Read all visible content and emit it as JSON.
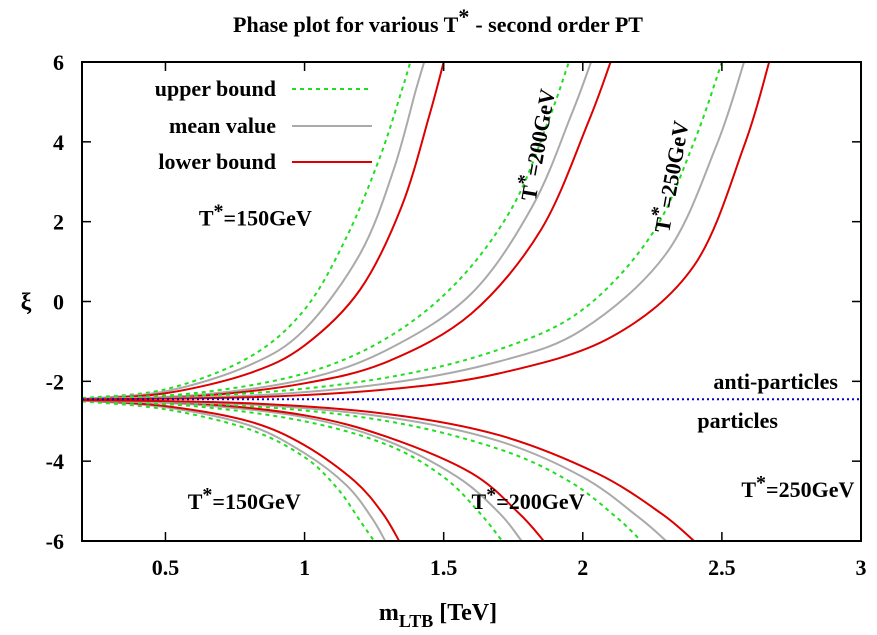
{
  "chart_data": {
    "type": "line",
    "title": "Phase plot for various T* - second order PT",
    "title_parts": [
      "Phase plot for various T",
      "*",
      "- second order PT"
    ],
    "xlabel": "m_LTB [TeV]",
    "xlabel_main": "m",
    "xlabel_sub": "LTB",
    "xlabel_unit": "[TeV]",
    "ylabel": "ξ",
    "xlim": [
      0.2,
      3.0
    ],
    "ylim": [
      -6,
      6
    ],
    "x_ticks": [
      0.5,
      1,
      1.5,
      2,
      2.5,
      3
    ],
    "y_ticks": [
      -6,
      -4,
      -2,
      0,
      2,
      4,
      6
    ],
    "grid": false,
    "legend_position": "top-left",
    "colors": {
      "upper": "#22dd22",
      "mean": "#aaaaaa",
      "lower": "#dd0000",
      "divider": "#0000cc"
    },
    "legend": [
      {
        "key": "upper",
        "label": "upper bound"
      },
      {
        "key": "mean",
        "label": "mean value"
      },
      {
        "key": "lower",
        "label": "lower bound"
      }
    ],
    "xi0": -2.45,
    "series": [
      {
        "temp": "150GeV",
        "bound": "upper",
        "branch": "up",
        "x": [
          0.2,
          0.5,
          0.8,
          1.0,
          1.15,
          1.27,
          1.35,
          1.38
        ],
        "y": [
          -2.42,
          -2.2,
          -1.4,
          -0.2,
          1.6,
          3.6,
          5.3,
          6.0
        ]
      },
      {
        "temp": "150GeV",
        "bound": "mean",
        "branch": "up",
        "x": [
          0.2,
          0.5,
          0.8,
          1.0,
          1.2,
          1.32,
          1.4,
          1.43
        ],
        "y": [
          -2.44,
          -2.25,
          -1.6,
          -0.7,
          1.2,
          3.3,
          5.3,
          6.0
        ]
      },
      {
        "temp": "150GeV",
        "bound": "lower",
        "branch": "up",
        "x": [
          0.2,
          0.5,
          0.8,
          1.0,
          1.2,
          1.35,
          1.45,
          1.5
        ],
        "y": [
          -2.45,
          -2.3,
          -1.8,
          -1.1,
          0.3,
          2.4,
          4.7,
          6.0
        ]
      },
      {
        "temp": "200GeV",
        "bound": "upper",
        "branch": "up",
        "x": [
          0.2,
          0.6,
          1.0,
          1.3,
          1.55,
          1.75,
          1.88,
          1.95
        ],
        "y": [
          -2.42,
          -2.3,
          -1.8,
          -0.9,
          0.5,
          2.4,
          4.6,
          6.0
        ]
      },
      {
        "temp": "200GeV",
        "bound": "mean",
        "branch": "up",
        "x": [
          0.2,
          0.6,
          1.0,
          1.3,
          1.6,
          1.82,
          1.96,
          2.03
        ],
        "y": [
          -2.44,
          -2.35,
          -1.95,
          -1.2,
          0.2,
          2.4,
          4.7,
          6.0
        ]
      },
      {
        "temp": "200GeV",
        "bound": "lower",
        "branch": "up",
        "x": [
          0.2,
          0.6,
          1.0,
          1.3,
          1.6,
          1.85,
          2.02,
          2.1
        ],
        "y": [
          -2.45,
          -2.38,
          -2.05,
          -1.5,
          -0.3,
          1.8,
          4.5,
          6.0
        ]
      },
      {
        "temp": "250GeV",
        "bound": "upper",
        "branch": "up",
        "x": [
          0.2,
          0.8,
          1.3,
          1.7,
          2.0,
          2.25,
          2.4,
          2.5
        ],
        "y": [
          -2.42,
          -2.3,
          -1.9,
          -1.2,
          -0.2,
          1.7,
          4.0,
          6.0
        ]
      },
      {
        "temp": "250GeV",
        "bound": "mean",
        "branch": "up",
        "x": [
          0.2,
          0.8,
          1.3,
          1.7,
          2.0,
          2.3,
          2.48,
          2.58
        ],
        "y": [
          -2.44,
          -2.36,
          -2.05,
          -1.5,
          -0.7,
          1.2,
          3.9,
          6.0
        ]
      },
      {
        "temp": "250GeV",
        "bound": "lower",
        "branch": "up",
        "x": [
          0.2,
          0.8,
          1.3,
          1.7,
          2.1,
          2.4,
          2.58,
          2.67
        ],
        "y": [
          -2.45,
          -2.4,
          -2.2,
          -1.8,
          -0.9,
          0.9,
          3.9,
          6.0
        ]
      },
      {
        "temp": "150GeV",
        "bound": "upper",
        "branch": "down",
        "x": [
          0.2,
          0.5,
          0.8,
          1.0,
          1.12,
          1.2,
          1.25
        ],
        "y": [
          -2.5,
          -2.7,
          -3.2,
          -3.9,
          -4.7,
          -5.5,
          -6.0
        ]
      },
      {
        "temp": "150GeV",
        "bound": "mean",
        "branch": "down",
        "x": [
          0.2,
          0.5,
          0.8,
          1.0,
          1.15,
          1.24,
          1.29
        ],
        "y": [
          -2.48,
          -2.65,
          -3.1,
          -3.8,
          -4.6,
          -5.4,
          -6.0
        ]
      },
      {
        "temp": "150GeV",
        "bound": "lower",
        "branch": "down",
        "x": [
          0.2,
          0.5,
          0.8,
          1.0,
          1.18,
          1.28,
          1.34
        ],
        "y": [
          -2.47,
          -2.62,
          -3.0,
          -3.6,
          -4.5,
          -5.3,
          -6.0
        ]
      },
      {
        "temp": "200GeV",
        "bound": "upper",
        "branch": "down",
        "x": [
          0.2,
          0.6,
          1.0,
          1.3,
          1.5,
          1.63,
          1.71
        ],
        "y": [
          -2.5,
          -2.62,
          -3.0,
          -3.6,
          -4.4,
          -5.3,
          -6.0
        ]
      },
      {
        "temp": "200GeV",
        "bound": "mean",
        "branch": "down",
        "x": [
          0.2,
          0.6,
          1.0,
          1.3,
          1.55,
          1.7,
          1.78
        ],
        "y": [
          -2.48,
          -2.58,
          -2.9,
          -3.5,
          -4.4,
          -5.3,
          -6.0
        ]
      },
      {
        "temp": "200GeV",
        "bound": "lower",
        "branch": "down",
        "x": [
          0.2,
          0.6,
          1.0,
          1.3,
          1.6,
          1.77,
          1.86
        ],
        "y": [
          -2.47,
          -2.55,
          -2.85,
          -3.4,
          -4.3,
          -5.3,
          -6.0
        ]
      },
      {
        "temp": "250GeV",
        "bound": "upper",
        "branch": "down",
        "x": [
          0.2,
          0.8,
          1.3,
          1.7,
          1.95,
          2.12,
          2.21
        ],
        "y": [
          -2.5,
          -2.62,
          -3.0,
          -3.7,
          -4.5,
          -5.4,
          -6.0
        ]
      },
      {
        "temp": "250GeV",
        "bound": "mean",
        "branch": "down",
        "x": [
          0.2,
          0.8,
          1.3,
          1.7,
          2.0,
          2.2,
          2.3
        ],
        "y": [
          -2.48,
          -2.58,
          -2.9,
          -3.5,
          -4.4,
          -5.4,
          -6.0
        ]
      },
      {
        "temp": "250GeV",
        "bound": "lower",
        "branch": "down",
        "x": [
          0.2,
          0.8,
          1.3,
          1.7,
          2.05,
          2.28,
          2.4
        ],
        "y": [
          -2.47,
          -2.55,
          -2.82,
          -3.35,
          -4.3,
          -5.3,
          -6.0
        ]
      }
    ],
    "divider": {
      "y": -2.45,
      "label_above": "anti-particles",
      "label_below": "particles"
    },
    "annotations": [
      {
        "id": "t150-up",
        "text": "T",
        "sup": "*",
        "rest": "=150GeV",
        "x": 0.62,
        "y": 1.9,
        "rotate": 0
      },
      {
        "id": "t200-up",
        "text": "T",
        "sup": "*",
        "rest": "=200GeV",
        "x": 1.83,
        "y": 2.5,
        "rotate": -80
      },
      {
        "id": "t250-up",
        "text": "T",
        "sup": "*",
        "rest": "=250GeV",
        "x": 2.31,
        "y": 1.7,
        "rotate": -80
      },
      {
        "id": "t150-down",
        "text": "T",
        "sup": "*",
        "rest": "=150GeV",
        "x": 0.58,
        "y": -5.2,
        "rotate": 0
      },
      {
        "id": "t200-down",
        "text": "T",
        "sup": "*",
        "rest": "=200GeV",
        "x": 1.6,
        "y": -5.2,
        "rotate": 0
      },
      {
        "id": "t250-down",
        "text": "T",
        "sup": "*",
        "rest": "=250GeV",
        "x": 2.57,
        "y": -4.9,
        "rotate": 0
      }
    ]
  }
}
